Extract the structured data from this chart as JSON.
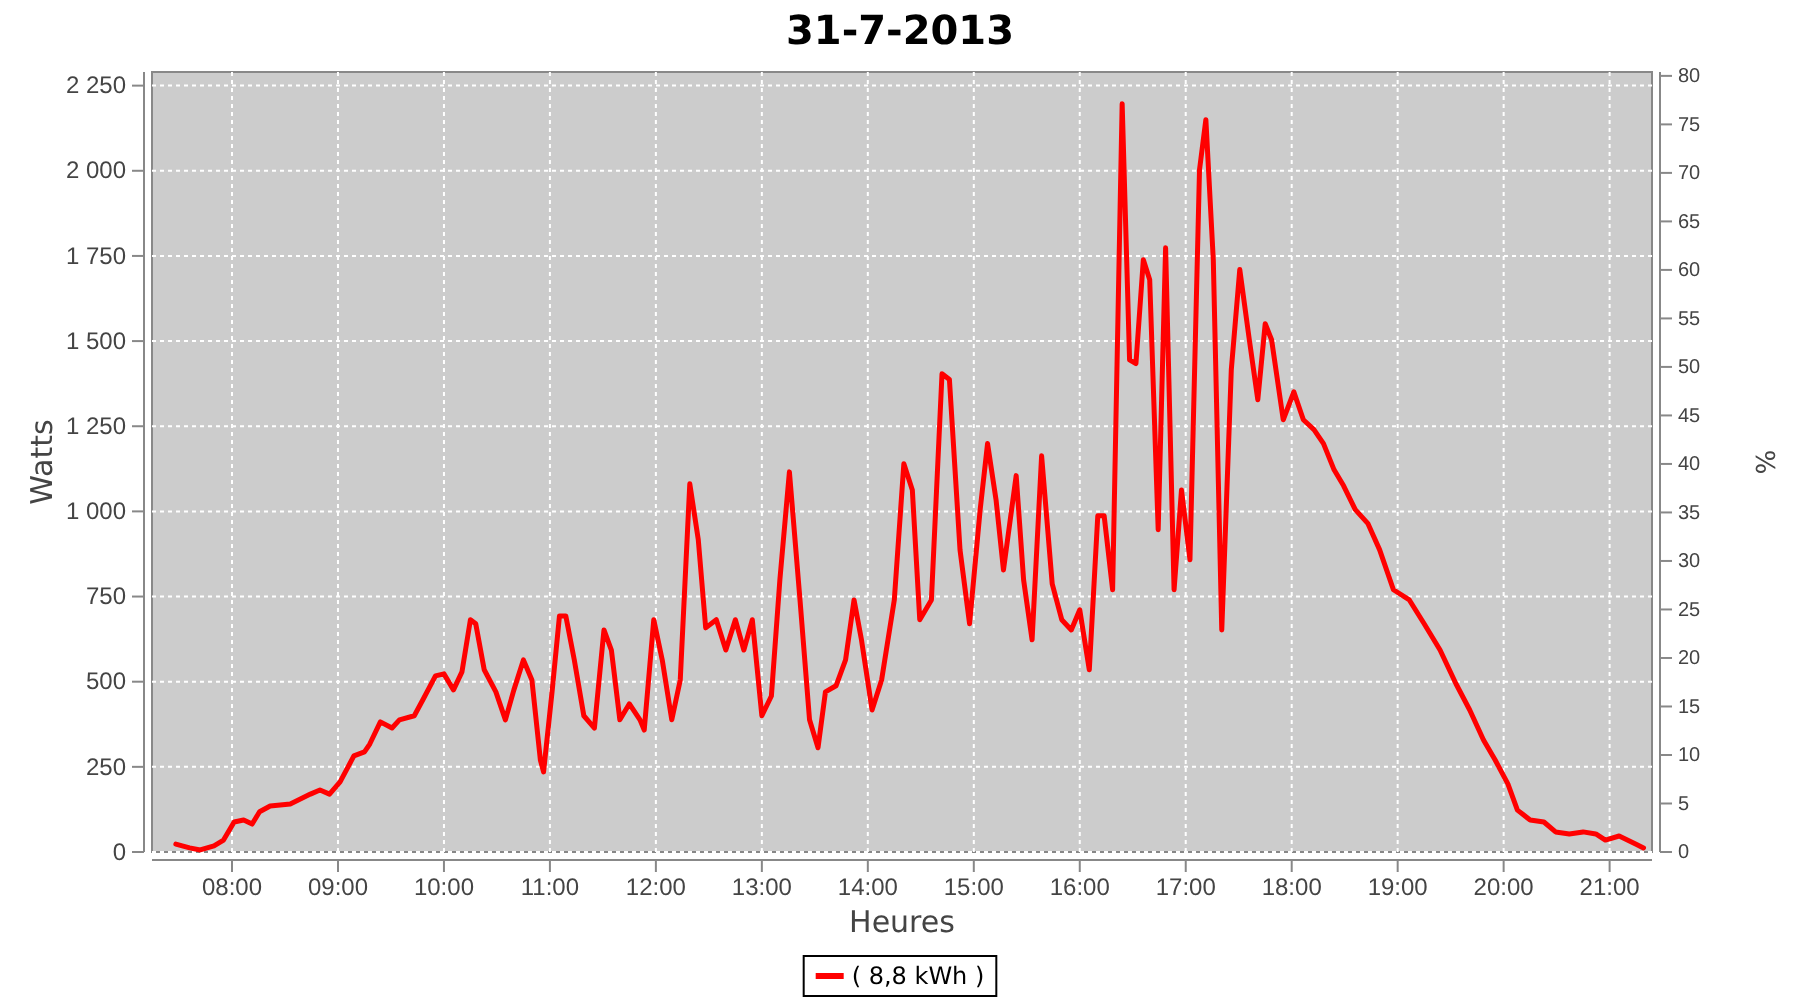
{
  "chart_data": {
    "type": "line",
    "title": "31-7-2013",
    "xlabel": "Heures",
    "ylabel": "Watts",
    "y2label": "%",
    "xlim": [
      7.245,
      21.4
    ],
    "xticks": [
      {
        "value": 8,
        "label": "08:00"
      },
      {
        "value": 9,
        "label": "09:00"
      },
      {
        "value": 10,
        "label": "10:00"
      },
      {
        "value": 11,
        "label": "11:00"
      },
      {
        "value": 12,
        "label": "12:00"
      },
      {
        "value": 13,
        "label": "13:00"
      },
      {
        "value": 14,
        "label": "14:00"
      },
      {
        "value": 15,
        "label": "15:00"
      },
      {
        "value": 16,
        "label": "16:00"
      },
      {
        "value": 17,
        "label": "17:00"
      },
      {
        "value": 18,
        "label": "18:00"
      },
      {
        "value": 19,
        "label": "19:00"
      },
      {
        "value": 20,
        "label": "20:00"
      },
      {
        "value": 21,
        "label": "21:00"
      }
    ],
    "ylim": [
      0,
      2290
    ],
    "yticks": [
      0,
      250,
      500,
      750,
      {
        "value": 1000,
        "label": "1 000"
      },
      {
        "value": 1250,
        "label": "1 250"
      },
      {
        "value": 1500,
        "label": "1 500"
      },
      {
        "value": 1750,
        "label": "1 750"
      },
      {
        "value": 2000,
        "label": "2 000"
      },
      {
        "value": 2250,
        "label": "2 250"
      }
    ],
    "y2lim": [
      0,
      80.4
    ],
    "y2ticks": [
      0,
      5,
      10,
      15,
      20,
      25,
      30,
      35,
      40,
      45,
      50,
      55,
      60,
      65,
      70,
      75,
      80
    ],
    "grid": true,
    "legend": "bottom",
    "marker": "none",
    "line_style": "solid",
    "series": [
      {
        "name": "( 8,8 kWh )",
        "color": "#ff0000",
        "x": [
          7.47,
          7.6,
          7.7,
          7.83,
          7.92,
          8.02,
          8.11,
          8.19,
          8.26,
          8.36,
          8.55,
          8.74,
          8.83,
          8.92,
          9.02,
          9.15,
          9.25,
          9.3,
          9.4,
          9.51,
          9.58,
          9.72,
          9.81,
          9.92,
          10.0,
          10.09,
          10.17,
          10.25,
          10.3,
          10.38,
          10.49,
          10.58,
          10.66,
          10.75,
          10.83,
          10.91,
          10.94,
          11.02,
          11.09,
          11.15,
          11.23,
          11.32,
          11.42,
          11.51,
          11.58,
          11.66,
          11.75,
          11.85,
          11.89,
          11.98,
          12.06,
          12.15,
          12.23,
          12.32,
          12.4,
          12.47,
          12.57,
          12.66,
          12.75,
          12.83,
          12.91,
          13.0,
          13.09,
          13.17,
          13.26,
          13.36,
          13.45,
          13.53,
          13.6,
          13.7,
          13.79,
          13.87,
          13.94,
          14.04,
          14.13,
          14.25,
          14.34,
          14.42,
          14.49,
          14.6,
          14.7,
          14.77,
          14.87,
          14.96,
          15.06,
          15.13,
          15.21,
          15.28,
          15.4,
          15.47,
          15.55,
          15.64,
          15.74,
          15.83,
          15.92,
          16.0,
          16.09,
          16.17,
          16.23,
          16.31,
          16.4,
          16.47,
          16.53,
          16.6,
          16.66,
          16.74,
          16.81,
          16.89,
          16.96,
          17.04,
          17.13,
          17.19,
          17.26,
          17.34,
          17.43,
          17.51,
          17.6,
          17.68,
          17.75,
          17.81,
          17.92,
          18.02,
          18.11,
          18.21,
          18.3,
          18.4,
          18.49,
          18.6,
          18.72,
          18.83,
          18.96,
          19.11,
          19.25,
          19.4,
          19.55,
          19.68,
          19.81,
          19.92,
          20.04,
          20.13,
          20.25,
          20.38,
          20.49,
          20.62,
          20.75,
          20.87,
          20.96,
          21.09,
          21.25,
          21.32
        ],
        "values": [
          23,
          12,
          6,
          18,
          35,
          88,
          94,
          82,
          118,
          135,
          141,
          170,
          182,
          170,
          206,
          282,
          294,
          317,
          382,
          364,
          388,
          400,
          452,
          517,
          523,
          476,
          529,
          682,
          670,
          535,
          470,
          388,
          476,
          564,
          505,
          270,
          235,
          470,
          693,
          693,
          564,
          400,
          364,
          652,
          593,
          388,
          435,
          388,
          358,
          682,
          564,
          388,
          505,
          1081,
          917,
          658,
          682,
          593,
          682,
          593,
          682,
          400,
          458,
          799,
          1116,
          740,
          388,
          306,
          470,
          488,
          564,
          740,
          623,
          417,
          505,
          740,
          1140,
          1063,
          682,
          740,
          1404,
          1387,
          887,
          670,
          1005,
          1199,
          1034,
          828,
          1105,
          799,
          623,
          1163,
          787,
          682,
          652,
          711,
          535,
          987,
          987,
          770,
          2197,
          1445,
          1434,
          1739,
          1680,
          946,
          1774,
          770,
          1063,
          858,
          2003,
          2150,
          1739,
          652,
          1416,
          1710,
          1504,
          1328,
          1551,
          1504,
          1269,
          1351,
          1269,
          1240,
          1199,
          1122,
          1075,
          1005,
          964,
          887,
          770,
          740,
          670,
          593,
          494,
          417,
          329,
          270,
          200,
          123,
          94,
          88,
          59,
          53,
          59,
          53,
          35,
          47,
          23,
          12
        ]
      }
    ]
  }
}
